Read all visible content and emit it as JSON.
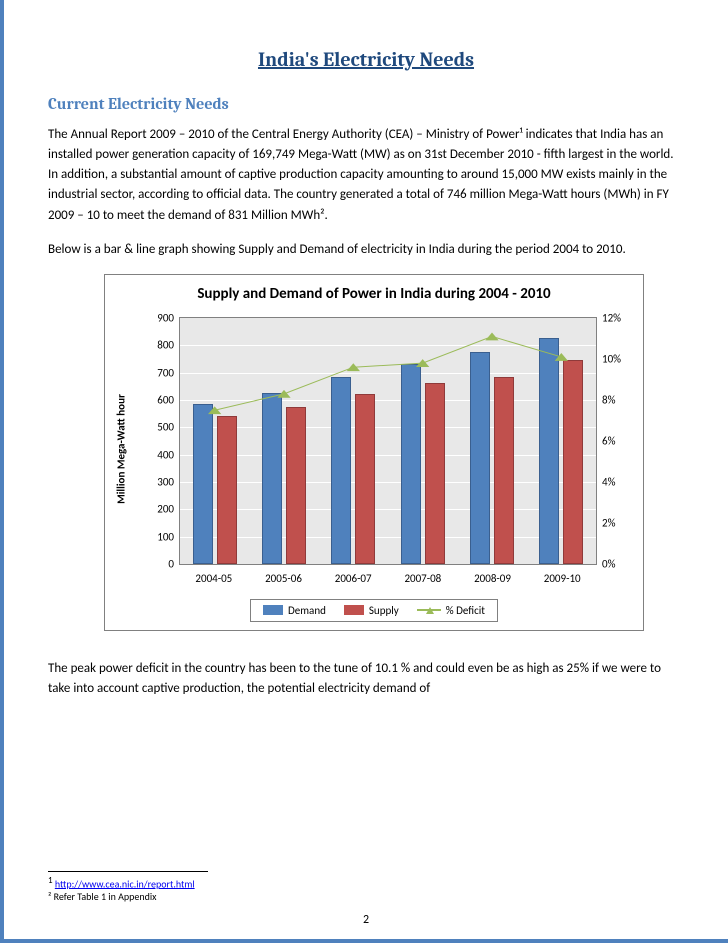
{
  "title": "India's Electricity Needs",
  "section_heading": "Current Electricity Needs",
  "para1": "The Annual Report 2009 – 2010 of the Central Energy Authority (CEA) – Ministry of Power¹ indicates that India has an installed power generation capacity of 169,749 Mega-Watt (MW) as on 31st December 2010 - fifth largest in the world.  In addition, a substantial amount of captive production capacity amounting to around 15,000 MW exists mainly in the industrial sector, according to official data. The country generated a total of 746 million Mega-Watt hours (MWh) in FY 2009 – 10 to meet the demand of 831 Million MWh².",
  "para2": "Below is a bar & line graph showing Supply and Demand of electricity in India during the period 2004 to 2010.",
  "para3": "The peak power deficit in the country has been to the tune of 10.1 % and could even be as high as 25% if we were to take into account captive production, the potential electricity demand of",
  "chart": {
    "type": "bar-line-combo",
    "title": "Supply and Demand of Power in India during 2004 - 2010",
    "y_label": "Million Mega-Watt hour",
    "categories": [
      "2004-05",
      "2005-06",
      "2006-07",
      "2007-08",
      "2008-09",
      "2009-10"
    ],
    "demand_values": [
      585,
      625,
      685,
      730,
      775,
      825
    ],
    "supply_values": [
      540,
      575,
      620,
      660,
      685,
      745
    ],
    "deficit_pct": [
      7.5,
      8.3,
      9.6,
      9.8,
      11.1,
      10.1
    ],
    "demand_color": "#4f81bd",
    "supply_color": "#c0504d",
    "line_color": "#9bbb59",
    "bg_color": "#e8e8e8",
    "grid_color": "#ffffff",
    "y_left": {
      "min": 0,
      "max": 900,
      "step": 100
    },
    "y_right": {
      "min": 0,
      "max": 12,
      "step": 2,
      "suffix": "%"
    },
    "legend": {
      "demand": "Demand",
      "supply": "Supply",
      "deficit": "% Deficit"
    }
  },
  "footnote1_marker": "1",
  "footnote1_link": "http://www.cea.nic.in/report.html",
  "footnote2": "² Refer Table 1 in Appendix",
  "page_number": "2"
}
